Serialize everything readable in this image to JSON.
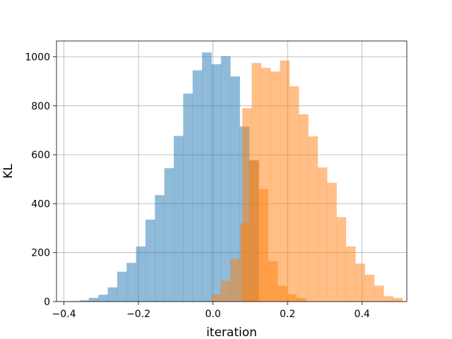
{
  "chart_data": {
    "type": "histogram",
    "title": "",
    "xlabel": "iteration",
    "ylabel": "KL",
    "xlim": [
      -0.42,
      0.52
    ],
    "ylim": [
      0,
      1065
    ],
    "xticks": [
      -0.4,
      -0.2,
      0.0,
      0.2,
      0.4
    ],
    "xtick_labels": [
      "−0.4",
      "−0.2",
      "0.0",
      "0.2",
      "0.4"
    ],
    "yticks": [
      0,
      200,
      400,
      600,
      800,
      1000
    ],
    "ytick_labels": [
      "0",
      "200",
      "400",
      "600",
      "800",
      "1000"
    ],
    "grid": true,
    "legend": "none",
    "series": [
      {
        "color": "#1f77b4",
        "alpha": 0.5,
        "bin_width": 0.0253,
        "x_start": -0.3836,
        "counts": [
          2,
          5,
          15,
          28,
          58,
          122,
          158,
          225,
          335,
          435,
          545,
          677,
          850,
          945,
          1018,
          970,
          1003,
          920,
          715,
          578
        ]
      },
      {
        "color": "#ff7f0e",
        "alpha": 0.5,
        "bin_width": 0.0253,
        "x_start": -0.0036,
        "counts": [
          30,
          85,
          175,
          320,
          575,
          460,
          165,
          65,
          30,
          15
        ]
      },
      {
        "color": "#ff7f0e",
        "alpha": 0.5,
        "bin_width": 0.0253,
        "x_start": 0.0784,
        "counts": [
          790,
          975,
          955,
          940,
          985,
          880,
          765,
          675,
          548,
          485,
          345,
          225,
          155,
          110,
          65,
          22,
          15
        ]
      }
    ]
  }
}
